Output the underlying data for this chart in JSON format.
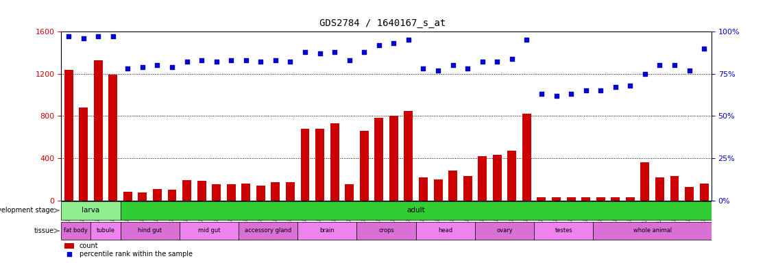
{
  "title": "GDS2784 / 1640167_s_at",
  "samples": [
    "GSM188092",
    "GSM188093",
    "GSM188094",
    "GSM188095",
    "GSM188100",
    "GSM188101",
    "GSM188102",
    "GSM188103",
    "GSM188072",
    "GSM188073",
    "GSM188074",
    "GSM188075",
    "GSM188076",
    "GSM188077",
    "GSM188078",
    "GSM188079",
    "GSM188080",
    "GSM188081",
    "GSM188082",
    "GSM188083",
    "GSM188084",
    "GSM188085",
    "GSM188086",
    "GSM188087",
    "GSM188088",
    "GSM188089",
    "GSM188090",
    "GSM188091",
    "GSM188096",
    "GSM188097",
    "GSM188098",
    "GSM188099",
    "GSM188104",
    "GSM188105",
    "GSM188106",
    "GSM188107",
    "GSM188108",
    "GSM188109",
    "GSM188110",
    "GSM188111",
    "GSM188112",
    "GSM188113",
    "GSM188114",
    "GSM188115"
  ],
  "counts": [
    1240,
    880,
    1330,
    1190,
    80,
    75,
    110,
    100,
    190,
    185,
    150,
    155,
    160,
    140,
    170,
    175,
    680,
    680,
    730,
    150,
    660,
    780,
    800,
    850,
    220,
    200,
    280,
    230,
    420,
    430,
    470,
    820,
    30,
    30,
    30,
    30,
    30,
    30,
    30,
    360,
    220,
    230,
    130,
    160
  ],
  "percentiles": [
    97,
    96,
    97,
    97,
    78,
    79,
    80,
    79,
    82,
    83,
    82,
    83,
    83,
    82,
    83,
    82,
    88,
    87,
    88,
    83,
    88,
    92,
    93,
    95,
    78,
    77,
    80,
    78,
    82,
    82,
    84,
    95,
    63,
    62,
    63,
    65,
    65,
    67,
    68,
    75,
    80,
    80,
    77,
    90
  ],
  "ylim_left": [
    0,
    1600
  ],
  "ylim_right": [
    0,
    100
  ],
  "yticks_left": [
    0,
    400,
    800,
    1200,
    1600
  ],
  "yticks_right": [
    0,
    25,
    50,
    75,
    100
  ],
  "bar_color": "#cc0000",
  "dot_color": "#0000cc",
  "grid_color": "#000000",
  "bg_color": "#ffffff",
  "development_stages": [
    {
      "label": "larva",
      "start": 0,
      "end": 4,
      "color": "#90ee90"
    },
    {
      "label": "adult",
      "start": 4,
      "end": 44,
      "color": "#32cd32"
    }
  ],
  "tissues": [
    {
      "label": "fat body",
      "start": 0,
      "end": 2,
      "color": "#da70d6"
    },
    {
      "label": "tubule",
      "start": 2,
      "end": 4,
      "color": "#ee82ee"
    },
    {
      "label": "hind gut",
      "start": 4,
      "end": 8,
      "color": "#da70d6"
    },
    {
      "label": "mid gut",
      "start": 8,
      "end": 12,
      "color": "#ee82ee"
    },
    {
      "label": "accessory gland",
      "start": 12,
      "end": 16,
      "color": "#da70d6"
    },
    {
      "label": "brain",
      "start": 16,
      "end": 20,
      "color": "#ee82ee"
    },
    {
      "label": "crops",
      "start": 20,
      "end": 24,
      "color": "#da70d6"
    },
    {
      "label": "head",
      "start": 24,
      "end": 28,
      "color": "#ee82ee"
    },
    {
      "label": "ovary",
      "start": 28,
      "end": 32,
      "color": "#da70d6"
    },
    {
      "label": "testes",
      "start": 32,
      "end": 36,
      "color": "#ee82ee"
    },
    {
      "label": "whole animal",
      "start": 36,
      "end": 44,
      "color": "#da70d6"
    }
  ]
}
